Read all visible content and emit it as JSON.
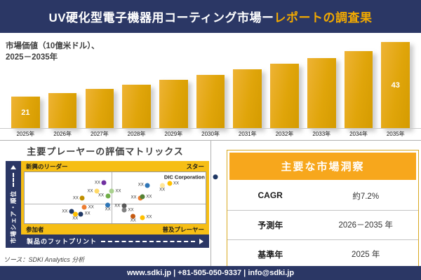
{
  "header": {
    "title_main": "UV硬化型電子機器用コーティング市場ー",
    "title_accent": "レポートの調査果"
  },
  "chart_data": [
    {
      "type": "bar",
      "title": "市場価値（10億米ドル）、2025－2035年",
      "title_lines": [
        "市場価値（10億米ドル）、",
        "2025－2035年"
      ],
      "categories": [
        "2025年",
        "2026年",
        "2027年",
        "2028年",
        "2029年",
        "2030年",
        "2031年",
        "2032年",
        "2033年",
        "2034年",
        "2035年"
      ],
      "values": [
        21,
        22.5,
        24.1,
        25.9,
        27.7,
        29.7,
        31.9,
        34.2,
        36.6,
        39.3,
        43
      ],
      "values_note": "only first and last bars carry data labels (21, 43); intermediate values estimated from ~7.2% CAGR growth of bar heights",
      "data_labels": {
        "first": "21",
        "last": "43"
      },
      "bar_color": "#e0a50a",
      "ylim": [
        8,
        45
      ],
      "grid": false,
      "legend": false
    },
    {
      "type": "scatter",
      "title": "主要プレーヤーの評価マトリックス",
      "xlabel": "製品のフットプリント",
      "ylabel": "市場シェア・順位",
      "quadrant_labels": {
        "top_left": "新興のリーダー",
        "top_right": "スター",
        "bottom_left": "参加者",
        "bottom_right": "普及プレーヤー"
      },
      "points": [
        {
          "x": 42,
          "y": 21,
          "color": "#7030a0",
          "label": "XX",
          "side": "left"
        },
        {
          "x": 38,
          "y": 37,
          "color": "#ffd966",
          "label": "XX",
          "side": "left"
        },
        {
          "x": 30,
          "y": 51,
          "color": "#bf8f00",
          "label": "XX",
          "side": "left"
        },
        {
          "x": 44,
          "y": 46,
          "color": "#70ad47",
          "label": "XX",
          "side": "left"
        },
        {
          "x": 50,
          "y": 37,
          "color": "#a9d18e",
          "label": "XX",
          "side": "right"
        },
        {
          "x": 66,
          "y": 26,
          "color": "#2e75b6",
          "label": "XX",
          "side": "left"
        },
        {
          "x": 76,
          "y": 30,
          "color": "#ffe699",
          "label": "XX",
          "side": "below"
        },
        {
          "x": 82,
          "y": 22,
          "color": "#ffc000",
          "label": "XX",
          "side": "right"
        },
        {
          "x": 92,
          "y": 9,
          "color": "#1f3864",
          "label": "DIC Corporation",
          "side": "left"
        },
        {
          "x": 62,
          "y": 50,
          "color": "#ed7d31",
          "label": "XX",
          "side": "left"
        },
        {
          "x": 67,
          "y": 48,
          "color": "#548235",
          "label": "XX",
          "side": "right"
        },
        {
          "x": 35,
          "y": 69,
          "color": "#ed7d31",
          "label": "XX",
          "side": "right"
        },
        {
          "x": 46,
          "y": 69,
          "color": "#2e75b6",
          "label": "XX",
          "side": "below"
        },
        {
          "x": 24,
          "y": 77,
          "color": "#203864",
          "label": "XX",
          "side": "left"
        },
        {
          "x": 33,
          "y": 82,
          "color": "#203864",
          "label": "XX",
          "side": "right"
        },
        {
          "x": 28,
          "y": 86,
          "color": "#ffc000",
          "label": "XX",
          "side": "below"
        },
        {
          "x": 53,
          "y": 66,
          "color": "#595959",
          "label": "XX",
          "side": "left"
        },
        {
          "x": 57,
          "y": 74,
          "color": "#808080",
          "label": "XX",
          "side": "right"
        },
        {
          "x": 60,
          "y": 90,
          "color": "#c55a11",
          "label": "XX",
          "side": "below"
        },
        {
          "x": 67,
          "y": 89,
          "color": "#ffc000",
          "label": "XX",
          "side": "right"
        }
      ]
    },
    {
      "type": "table",
      "title": "主要な市場洞察",
      "rows": [
        [
          "CAGR",
          "約7.2%"
        ],
        [
          "予測年",
          "2026－2035 年"
        ],
        [
          "基準年",
          "2025 年"
        ]
      ]
    }
  ],
  "source": "ソース：SDKI Analytics 分析",
  "footer": "www.sdki.jp | +81-505-050-9337 | info@sdki.jp",
  "colors": {
    "navy": "#2b3765",
    "bar_gold": "#e0a50a",
    "band_yellow": "#f6be15",
    "insights_orange": "#f7a71c",
    "title_accent": "#f2a900"
  }
}
